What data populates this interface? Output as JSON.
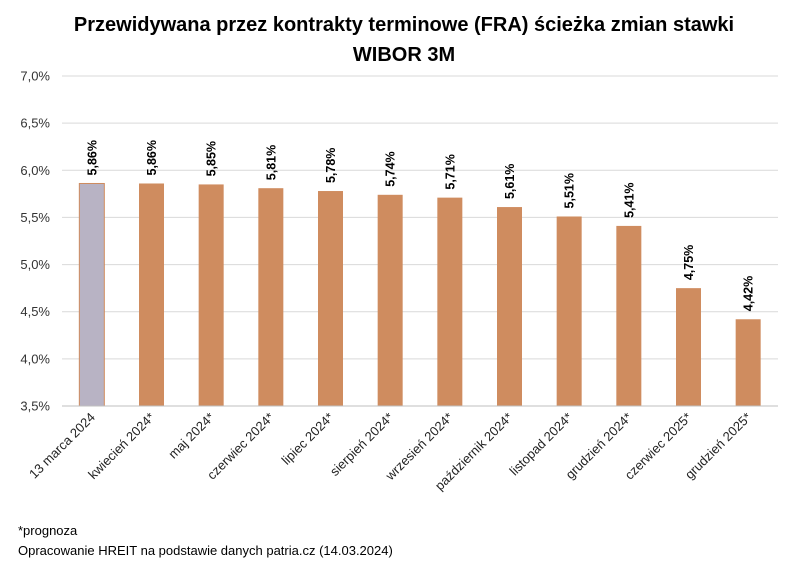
{
  "chart_data": {
    "type": "bar",
    "title_lines": [
      "Przewidywana przez kontrakty terminowe (FRA) ścieżka zmian stawki",
      "WIBOR 3M"
    ],
    "categories": [
      "13 marca 2024",
      "kwiecień 2024*",
      "maj 2024*",
      "czerwiec 2024*",
      "lipiec 2024*",
      "sierpień 2024*",
      "wrzesień 2024*",
      "październik 2024*",
      "listopad 2024*",
      "grudzień 2024*",
      "czerwiec 2025*",
      "grudzień 2025*"
    ],
    "values": [
      5.86,
      5.86,
      5.85,
      5.81,
      5.78,
      5.74,
      5.71,
      5.61,
      5.51,
      5.41,
      4.75,
      4.42
    ],
    "data_labels": [
      "5,86%",
      "5,86%",
      "5,85%",
      "5,81%",
      "5,78%",
      "5,74%",
      "5,71%",
      "5,61%",
      "5,51%",
      "5,41%",
      "4,75%",
      "4,42%"
    ],
    "ylim": [
      3.5,
      7.0
    ],
    "yticks": [
      3.5,
      4.0,
      4.5,
      5.0,
      5.5,
      6.0,
      6.5,
      7.0
    ],
    "ytick_labels": [
      "3,5%",
      "4,0%",
      "4,5%",
      "5,0%",
      "5,5%",
      "6,0%",
      "6,5%",
      "7,0%"
    ],
    "grid": true,
    "xlabel": "",
    "ylabel": "",
    "colors": {
      "actual": "#b8b3c4",
      "actual_border": "#cf8c5f",
      "forecast": "#cf8c5f",
      "grid": "#d9d9d9"
    }
  },
  "footnote": {
    "forecast_note": "*prognoza",
    "source": "Opracowanie HREIT na podstawie danych patria.cz (14.03.2024)"
  }
}
